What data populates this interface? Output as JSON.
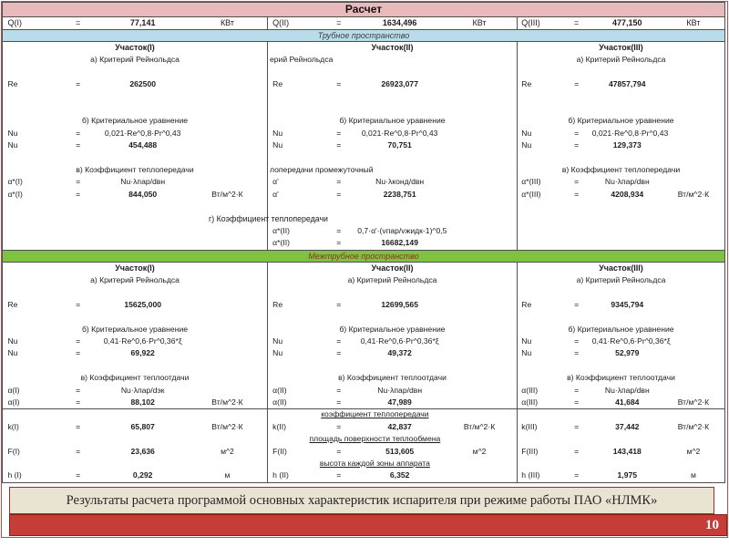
{
  "slide": {
    "title": "Расчет",
    "caption": "Результаты расчета программой основных характеристик испарителя при  режиме работы ПАО «НЛМК»",
    "page_number": "10"
  },
  "colors": {
    "header_pink": "#e9babc",
    "banner_blue": "#b9dcea",
    "banner_green": "#7fc241",
    "caption_beige": "#e9e3d2",
    "footer_red": "#c63d38",
    "table_border": "#4f4f4f",
    "frame_red": "#bf4d44"
  },
  "q_row": [
    {
      "label": "Q(I)",
      "eq": "=",
      "value": "77,141",
      "unit": "КВт"
    },
    {
      "label": "Q(II)",
      "eq": "=",
      "value": "1634,496",
      "unit": "КВт"
    },
    {
      "label": "Q(III)",
      "eq": "=",
      "value": "477,150",
      "unit": "КВт"
    }
  ],
  "tube": {
    "banner": "Трубное пространство",
    "span_label": "г) Коэффициент теплопередачи",
    "columns": [
      {
        "rows": [
          {
            "t": "h",
            "text": "Участок(I)"
          },
          {
            "t": "l",
            "text": "а) Критерий Рейнольдса"
          },
          {
            "t": "b"
          },
          {
            "t": "d",
            "label": "Re",
            "eq": "=",
            "value": "262500",
            "unit": "",
            "bold": true
          },
          {
            "t": "b"
          },
          {
            "t": "b"
          },
          {
            "t": "l",
            "text": "б) Критериальное уравнение"
          },
          {
            "t": "d",
            "label": "Nu",
            "eq": "=",
            "value": "0,021·Re^0,8·Pr^0,43",
            "unit": "",
            "bold": false
          },
          {
            "t": "d",
            "label": "Nu",
            "eq": "=",
            "value": "454,488",
            "unit": "",
            "bold": true
          },
          {
            "t": "b"
          },
          {
            "t": "l",
            "text": "в) Коэффициент теплопередачи"
          },
          {
            "t": "d",
            "label": "α*(I)",
            "eq": "=",
            "value": "Nu·λпар/dвн",
            "unit": "",
            "bold": false
          },
          {
            "t": "d",
            "label": "α*(I)",
            "eq": "=",
            "value": "844,050",
            "unit": "Вт/м^2·К",
            "bold": true
          },
          {
            "t": "b"
          },
          {
            "t": "b"
          },
          {
            "t": "b"
          },
          {
            "t": "b"
          }
        ]
      },
      {
        "rows": [
          {
            "t": "h",
            "text": "Участок(II)"
          },
          {
            "t": "lo",
            "text": "ерий Рейнольдса"
          },
          {
            "t": "b"
          },
          {
            "t": "d",
            "label": "Re",
            "eq": "=",
            "value": "26923,077",
            "unit": "",
            "bold": true
          },
          {
            "t": "b"
          },
          {
            "t": "b"
          },
          {
            "t": "l",
            "text": "б) Критериальное уравнение"
          },
          {
            "t": "d",
            "label": "Nu",
            "eq": "=",
            "value": "0,021·Re^0,8·Pr^0,43",
            "unit": "",
            "bold": false
          },
          {
            "t": "d",
            "label": "Nu",
            "eq": "=",
            "value": "70,751",
            "unit": "",
            "bold": true
          },
          {
            "t": "b"
          },
          {
            "t": "lo",
            "text": "лопередачи промежуточный"
          },
          {
            "t": "d",
            "label": "α'",
            "eq": "=",
            "value": "Nu·λконд/dвн",
            "unit": "",
            "bold": false
          },
          {
            "t": "d",
            "label": "α'",
            "eq": "=",
            "value": "2238,751",
            "unit": "",
            "bold": true
          },
          {
            "t": "b"
          },
          {
            "t": "b"
          },
          {
            "t": "d",
            "label": "α*(II)",
            "eq": "=",
            "value": "0,7·α'·(vпар/vжидк-1)^0,5",
            "unit": "",
            "bold": false
          },
          {
            "t": "d",
            "label": "α*(II)",
            "eq": "=",
            "value": "16682,149",
            "unit": "",
            "bold": true
          }
        ]
      },
      {
        "rows": [
          {
            "t": "h",
            "text": "Участок(III)"
          },
          {
            "t": "l",
            "text": "а) Критерий Рейнольдса"
          },
          {
            "t": "b"
          },
          {
            "t": "d",
            "label": "Re",
            "eq": "=",
            "value": "47857,794",
            "unit": "",
            "bold": true
          },
          {
            "t": "b"
          },
          {
            "t": "b"
          },
          {
            "t": "l",
            "text": "б) Критериальное уравнение"
          },
          {
            "t": "d",
            "label": "Nu",
            "eq": "=",
            "value": "0,021·Re^0,8·Pr^0,43",
            "unit": "",
            "bold": false
          },
          {
            "t": "d",
            "label": "Nu",
            "eq": "=",
            "value": "129,373",
            "unit": "",
            "bold": true
          },
          {
            "t": "b"
          },
          {
            "t": "l",
            "text": "в) Коэффициент теплопередачи"
          },
          {
            "t": "d",
            "label": "α*(III)",
            "eq": "=",
            "value": "Nu·λпар/dвн",
            "unit": "",
            "bold": false
          },
          {
            "t": "d",
            "label": "α*(III)",
            "eq": "=",
            "value": "4208,934",
            "unit": "Вт/м^2·К",
            "bold": true
          },
          {
            "t": "b"
          },
          {
            "t": "b"
          },
          {
            "t": "b"
          },
          {
            "t": "b"
          }
        ]
      }
    ]
  },
  "shell": {
    "banner": "Межтрубное пространство",
    "columns": [
      {
        "rows": [
          {
            "t": "h",
            "text": "Участок(I)"
          },
          {
            "t": "l",
            "text": "а) Критерий Рейнольдса"
          },
          {
            "t": "b"
          },
          {
            "t": "d",
            "label": "Re",
            "eq": "=",
            "value": "15625,000",
            "unit": "",
            "bold": true
          },
          {
            "t": "b"
          },
          {
            "t": "l",
            "text": "б) Критериальное уравнение"
          },
          {
            "t": "d",
            "label": "Nu",
            "eq": "=",
            "value": "0,41·Re^0,6·Pr^0,36*ξ",
            "unit": "",
            "bold": false
          },
          {
            "t": "d",
            "label": "Nu",
            "eq": "=",
            "value": "69,922",
            "unit": "",
            "bold": true
          },
          {
            "t": "b"
          },
          {
            "t": "l",
            "text": "в) Коэффициент теплоотдачи"
          },
          {
            "t": "d",
            "label": "α(I)",
            "eq": "=",
            "value": "Nu·λпар/dэк",
            "unit": "",
            "bold": false
          },
          {
            "t": "d",
            "label": "α(I)",
            "eq": "=",
            "value": "88,102",
            "unit": "Вт/м^2·К",
            "bold": true
          },
          {
            "t": "b"
          },
          {
            "t": "d",
            "label": "k(I)",
            "eq": "=",
            "value": "65,807",
            "unit": "Вт/м^2·К",
            "bold": true
          },
          {
            "t": "b"
          },
          {
            "t": "d",
            "label": "F(I)",
            "eq": "=",
            "value": "23,636",
            "unit": "м^2",
            "bold": true
          },
          {
            "t": "b"
          },
          {
            "t": "d",
            "label": "h (I)",
            "eq": "=",
            "value": "0,292",
            "unit": "м",
            "bold": true
          }
        ]
      },
      {
        "rows": [
          {
            "t": "h",
            "text": "Участок(II)"
          },
          {
            "t": "l",
            "text": "а) Критерий Рейнольдса"
          },
          {
            "t": "b"
          },
          {
            "t": "d",
            "label": "Re",
            "eq": "=",
            "value": "12699,565",
            "unit": "",
            "bold": true
          },
          {
            "t": "b"
          },
          {
            "t": "l",
            "text": "б) Критериальное уравнение"
          },
          {
            "t": "d",
            "label": "Nu",
            "eq": "=",
            "value": "0,41·Re^0,6·Pr^0,36*ξ",
            "unit": "",
            "bold": false
          },
          {
            "t": "d",
            "label": "Nu",
            "eq": "=",
            "value": "49,372",
            "unit": "",
            "bold": true
          },
          {
            "t": "b"
          },
          {
            "t": "l",
            "text": "в) Коэффициент теплоотдачи"
          },
          {
            "t": "d",
            "label": "α(II)",
            "eq": "=",
            "value": "Nu·λпар/dвн",
            "unit": "",
            "bold": false
          },
          {
            "t": "d",
            "label": "α(II)",
            "eq": "=",
            "value": "47,989",
            "unit": "",
            "bold": true
          },
          {
            "t": "u",
            "text": "коэффициент теплопередачи"
          },
          {
            "t": "d",
            "label": "k(II)",
            "eq": "=",
            "value": "42,837",
            "unit": "Вт/м^2·К",
            "bold": true
          },
          {
            "t": "u",
            "text": "площадь поверхности теплообмена"
          },
          {
            "t": "d",
            "label": "F(II)",
            "eq": "=",
            "value": "513,605",
            "unit": "м^2",
            "bold": true
          },
          {
            "t": "u",
            "text": "высота каждой зоны аппарата"
          },
          {
            "t": "d",
            "label": "h (II)",
            "eq": "=",
            "value": "6,352",
            "unit": "",
            "bold": true
          }
        ]
      },
      {
        "rows": [
          {
            "t": "h",
            "text": "Участок(III)"
          },
          {
            "t": "l",
            "text": "а) Критерий Рейнольдса"
          },
          {
            "t": "b"
          },
          {
            "t": "d",
            "label": "Re",
            "eq": "=",
            "value": "9345,794",
            "unit": "",
            "bold": true
          },
          {
            "t": "b"
          },
          {
            "t": "l",
            "text": "б) Критериальное уравнение"
          },
          {
            "t": "d",
            "label": "Nu",
            "eq": "=",
            "value": "0,41·Re^0,6·Pr^0,36*ξ",
            "unit": "",
            "bold": false
          },
          {
            "t": "d",
            "label": "Nu",
            "eq": "=",
            "value": "52,979",
            "unit": "",
            "bold": true
          },
          {
            "t": "b"
          },
          {
            "t": "l",
            "text": "в) Коэффициент теплоотдачи"
          },
          {
            "t": "d",
            "label": "α(III)",
            "eq": "=",
            "value": "Nu·λпар/dвн",
            "unit": "",
            "bold": false
          },
          {
            "t": "d",
            "label": "α(III)",
            "eq": "=",
            "value": "41,684",
            "unit": "Вт/м^2·К",
            "bold": true
          },
          {
            "t": "b"
          },
          {
            "t": "d",
            "label": "k(III)",
            "eq": "=",
            "value": "37,442",
            "unit": "Вт/м^2·К",
            "bold": true
          },
          {
            "t": "b"
          },
          {
            "t": "d",
            "label": "F(III)",
            "eq": "=",
            "value": "143,418",
            "unit": "м^2",
            "bold": true
          },
          {
            "t": "b"
          },
          {
            "t": "d",
            "label": "h (III)",
            "eq": "=",
            "value": "1,975",
            "unit": "м",
            "bold": true
          }
        ]
      }
    ]
  }
}
